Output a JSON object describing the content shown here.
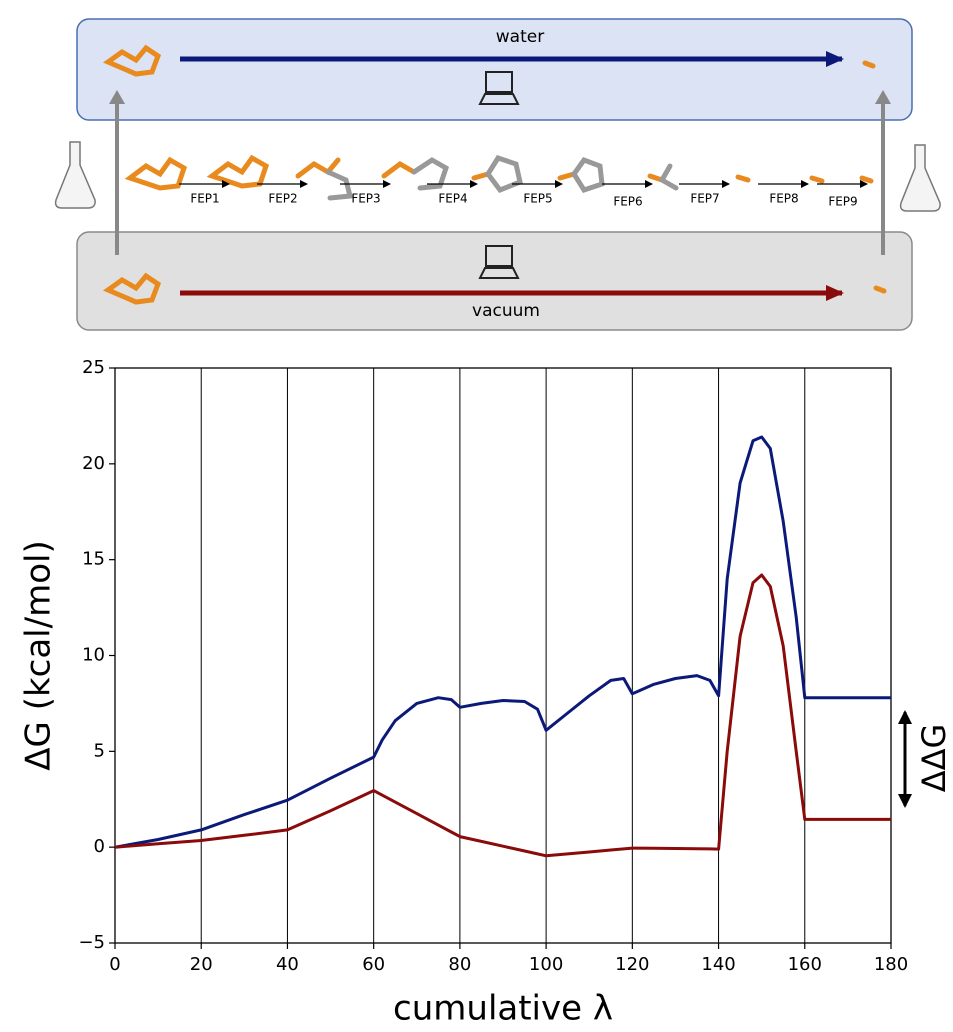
{
  "diagram": {
    "top_box": "water",
    "bottom_box": "vacuum",
    "steps": [
      "FEP1",
      "FEP2",
      "FEP3",
      "FEP4",
      "FEP5",
      "FEP6",
      "FEP7",
      "FEP8",
      "FEP9"
    ]
  },
  "chart_data": {
    "type": "line",
    "x_label": "cumulative λ",
    "y_label": "ΔG (kcal/mol)",
    "annotation": "ΔΔG",
    "x": [
      0,
      10,
      20,
      30,
      40,
      50,
      60,
      62,
      65,
      70,
      75,
      78,
      80,
      85,
      90,
      95,
      98,
      100,
      105,
      110,
      115,
      118,
      120,
      125,
      130,
      135,
      138,
      140,
      142,
      145,
      148,
      150,
      152,
      155,
      158,
      160,
      170,
      180
    ],
    "series": [
      {
        "color": "#0b1a78",
        "values": [
          0,
          0.4,
          0.9,
          1.7,
          2.45,
          3.6,
          4.7,
          5.6,
          6.6,
          7.5,
          7.8,
          7.7,
          7.3,
          7.5,
          7.65,
          7.6,
          7.2,
          6.1,
          7.0,
          7.9,
          8.7,
          8.8,
          8.0,
          8.5,
          8.8,
          8.95,
          8.7,
          7.9,
          14,
          19,
          21.2,
          21.4,
          20.8,
          17,
          12,
          7.8,
          7.8,
          7.8
        ]
      },
      {
        "color": "#8b0a0a",
        "values": [
          0,
          0.18,
          0.35,
          0.62,
          0.9,
          1.9,
          2.95,
          2.71,
          2.35,
          1.75,
          1.15,
          0.79,
          0.55,
          0.3,
          0.05,
          -0.2,
          -0.35,
          -0.45,
          -0.35,
          -0.25,
          -0.15,
          -0.09,
          -0.05,
          -0.06,
          -0.07,
          -0.08,
          -0.09,
          -0.1,
          5,
          11,
          13.8,
          14.2,
          13.6,
          10.5,
          5,
          1.45,
          1.45,
          1.45
        ]
      }
    ],
    "xlim": [
      0,
      180
    ],
    "ylim": [
      -5,
      25
    ],
    "xticks": [
      0,
      20,
      40,
      60,
      80,
      100,
      120,
      140,
      160,
      180
    ],
    "yticks": [
      {
        "value": -5,
        "label": "−5"
      },
      0,
      5,
      10,
      15,
      20,
      25
    ],
    "grid": "x"
  }
}
